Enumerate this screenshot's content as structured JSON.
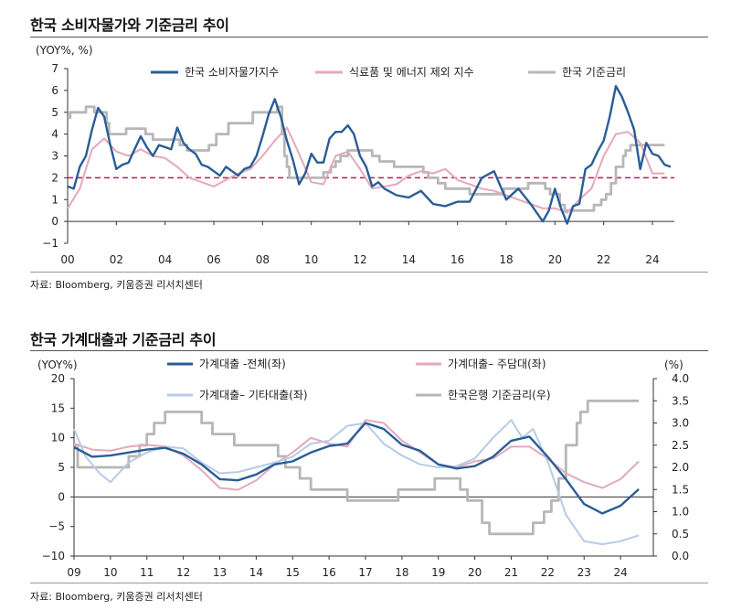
{
  "charts": [
    {
      "title": "한국 소비자물가와 기준금리 추이",
      "source": "자료: Bloomberg, 키움증권 리서치센터",
      "y_unit": "(YOY%, %)",
      "chart_data": {
        "type": "line",
        "xlabel": "",
        "ylabel": "(YOY%, %)",
        "x_tick_labels": [
          "00",
          "02",
          "04",
          "06",
          "08",
          "10",
          "12",
          "14",
          "16",
          "18",
          "20",
          "22",
          "24"
        ],
        "x_range": [
          2000,
          2024.9
        ],
        "y_ticks": [
          "−1",
          "0",
          "1",
          "2",
          "3",
          "4",
          "5",
          "6",
          "7"
        ],
        "ylim": [
          -1,
          7
        ],
        "grid": false,
        "legend_position": "top",
        "reference_line": {
          "value": 2,
          "style": "dashed",
          "color": "#c0185a"
        },
        "series": [
          {
            "name": "한국 소비자물가지수",
            "color": "#2a5d97",
            "width": 2.4,
            "x": [
              2000,
              2000.25,
              2000.5,
              2000.75,
              2001,
              2001.25,
              2001.5,
              2001.75,
              2002,
              2002.25,
              2002.5,
              2002.75,
              2003,
              2003.25,
              2003.5,
              2003.75,
              2004,
              2004.25,
              2004.5,
              2004.75,
              2005,
              2005.25,
              2005.5,
              2005.75,
              2006,
              2006.25,
              2006.5,
              2006.75,
              2007,
              2007.25,
              2007.5,
              2007.75,
              2008,
              2008.25,
              2008.5,
              2008.75,
              2009,
              2009.25,
              2009.5,
              2009.75,
              2010,
              2010.25,
              2010.5,
              2010.75,
              2011,
              2011.25,
              2011.5,
              2011.75,
              2012,
              2012.25,
              2012.5,
              2012.75,
              2013,
              2013.5,
              2014,
              2014.5,
              2015,
              2015.5,
              2016,
              2016.5,
              2017,
              2017.5,
              2018,
              2018.5,
              2019,
              2019.5,
              2019.75,
              2020,
              2020.25,
              2020.5,
              2020.75,
              2021,
              2021.25,
              2021.5,
              2021.75,
              2022,
              2022.25,
              2022.5,
              2022.75,
              2023,
              2023.25,
              2023.5,
              2023.75,
              2024,
              2024.25,
              2024.5,
              2024.75
            ],
            "y": [
              1.6,
              1.5,
              2.5,
              3.0,
              4.2,
              5.2,
              4.8,
              3.5,
              2.4,
              2.6,
              2.7,
              3.3,
              3.9,
              3.4,
              3.0,
              3.5,
              3.4,
              3.3,
              4.3,
              3.6,
              3.3,
              3.1,
              2.6,
              2.5,
              2.3,
              2.1,
              2.5,
              2.3,
              2.1,
              2.4,
              2.5,
              3.0,
              3.9,
              4.9,
              5.6,
              4.8,
              3.7,
              2.8,
              1.7,
              2.2,
              3.1,
              2.7,
              2.7,
              3.8,
              4.1,
              4.1,
              4.4,
              4.0,
              3.0,
              2.5,
              1.6,
              1.8,
              1.5,
              1.2,
              1.1,
              1.4,
              0.8,
              0.7,
              0.9,
              0.9,
              2.0,
              2.3,
              1.0,
              1.5,
              0.8,
              0.0,
              0.5,
              1.5,
              0.6,
              -0.1,
              0.7,
              0.8,
              2.4,
              2.6,
              3.2,
              3.7,
              4.8,
              6.2,
              5.7,
              5.0,
              4.2,
              2.4,
              3.6,
              3.1,
              3.0,
              2.6,
              2.5
            ]
          },
          {
            "name": "식료품 및 에너지 제외 지수",
            "color": "#e3a9bb",
            "width": 2.0,
            "x": [
              2000,
              2000.5,
              2001,
              2001.5,
              2002,
              2002.5,
              2003,
              2003.5,
              2004,
              2004.5,
              2005,
              2005.5,
              2006,
              2006.5,
              2007,
              2007.5,
              2008,
              2008.5,
              2009,
              2009.5,
              2010,
              2010.5,
              2011,
              2011.5,
              2012,
              2012.5,
              2013,
              2013.5,
              2014,
              2014.5,
              2015,
              2015.5,
              2016,
              2016.5,
              2017,
              2017.5,
              2018,
              2018.5,
              2019,
              2019.5,
              2020,
              2020.5,
              2021,
              2021.5,
              2022,
              2022.5,
              2023,
              2023.5,
              2024,
              2024.5
            ],
            "y": [
              0.6,
              1.5,
              3.3,
              3.8,
              3.2,
              3.0,
              3.3,
              3.0,
              2.9,
              2.5,
              2.0,
              1.8,
              1.6,
              1.9,
              2.2,
              2.4,
              3.0,
              3.7,
              4.3,
              3.1,
              1.8,
              1.7,
              3.0,
              3.2,
              2.4,
              1.5,
              1.6,
              1.7,
              2.1,
              2.3,
              2.2,
              2.4,
              1.9,
              1.7,
              1.5,
              1.4,
              1.2,
              1.0,
              0.8,
              0.6,
              0.6,
              0.4,
              1.0,
              1.5,
              3.0,
              4.0,
              4.1,
              3.6,
              2.2,
              2.2
            ]
          },
          {
            "name": "한국 기준금리",
            "color": "#b7b7b7",
            "width": 2.8,
            "x": [
              2000,
              2000.1,
              2000.1,
              2000.75,
              2000.75,
              2001.1,
              2001.1,
              2001.6,
              2001.6,
              2001.7,
              2001.7,
              2002.4,
              2002.4,
              2003.2,
              2003.2,
              2003.5,
              2003.5,
              2004.6,
              2004.6,
              2004.9,
              2004.9,
              2005.8,
              2005.8,
              2006.1,
              2006.1,
              2006.6,
              2006.6,
              2007.6,
              2007.6,
              2008.6,
              2008.6,
              2008.8,
              2008.8,
              2008.9,
              2008.9,
              2009.0,
              2009.0,
              2009.1,
              2009.1,
              2010.5,
              2010.5,
              2010.8,
              2010.8,
              2011.0,
              2011.0,
              2011.2,
              2011.2,
              2011.5,
              2011.5,
              2012.5,
              2012.5,
              2012.8,
              2012.8,
              2013.4,
              2013.4,
              2014.6,
              2014.6,
              2014.8,
              2014.8,
              2015.2,
              2015.2,
              2015.5,
              2015.5,
              2016.5,
              2016.5,
              2017.9,
              2017.9,
              2018.9,
              2018.9,
              2019.6,
              2019.6,
              2019.8,
              2019.8,
              2020.2,
              2020.2,
              2020.4,
              2020.4,
              2021.6,
              2021.6,
              2021.9,
              2021.9,
              2022.1,
              2022.1,
              2022.3,
              2022.3,
              2022.5,
              2022.5,
              2022.8,
              2022.8,
              2022.9,
              2022.9,
              2023.1,
              2023.1,
              2024.5
            ],
            "y": [
              4.75,
              4.75,
              5.0,
              5.0,
              5.25,
              5.25,
              5.0,
              5.0,
              4.5,
              4.5,
              4.0,
              4.0,
              4.25,
              4.25,
              4.0,
              4.0,
              3.75,
              3.75,
              3.5,
              3.5,
              3.25,
              3.25,
              3.5,
              3.5,
              4.0,
              4.0,
              4.5,
              4.5,
              5.0,
              5.0,
              5.25,
              5.25,
              4.0,
              4.0,
              3.0,
              3.0,
              2.5,
              2.5,
              2.0,
              2.0,
              2.25,
              2.25,
              2.5,
              2.5,
              2.75,
              2.75,
              3.0,
              3.0,
              3.25,
              3.25,
              3.0,
              3.0,
              2.75,
              2.75,
              2.5,
              2.5,
              2.25,
              2.25,
              2.0,
              2.0,
              1.75,
              1.75,
              1.5,
              1.5,
              1.25,
              1.25,
              1.5,
              1.5,
              1.75,
              1.75,
              1.5,
              1.5,
              1.25,
              1.25,
              0.75,
              0.75,
              0.5,
              0.5,
              0.75,
              0.75,
              1.0,
              1.0,
              1.25,
              1.25,
              1.75,
              1.75,
              2.5,
              2.5,
              3.0,
              3.0,
              3.25,
              3.25,
              3.5,
              3.5
            ]
          }
        ]
      }
    },
    {
      "title": "한국 가계대출과 기준금리 추이",
      "source": "자료: Bloomberg, 키움증권 리서치센터",
      "y_unit_left": "(YOY%)",
      "y_unit_right": "(%)",
      "chart_data": {
        "type": "line",
        "xlabel": "",
        "ylabel": "(YOY%)",
        "ylabel_right": "(%)",
        "x_tick_labels": [
          "09",
          "10",
          "11",
          "12",
          "13",
          "14",
          "15",
          "16",
          "17",
          "18",
          "19",
          "20",
          "21",
          "22",
          "23",
          "24"
        ],
        "x_range": [
          2009,
          2024.9
        ],
        "y_ticks": [
          "−10",
          "−5",
          "0",
          "5",
          "10",
          "15",
          "20"
        ],
        "ylim": [
          -10,
          20
        ],
        "y_ticks_right": [
          "0.0",
          "0.5",
          "1.0",
          "1.5",
          "2.0",
          "2.5",
          "3.0",
          "3.5",
          "4.0"
        ],
        "ylim_right": [
          0,
          4
        ],
        "grid": false,
        "legend_position": "top",
        "series": [
          {
            "name": "가계대출 -전체(좌)",
            "axis": "left",
            "color": "#2a5d97",
            "width": 2.4,
            "x": [
              2009,
              2009.5,
              2010,
              2010.5,
              2011,
              2011.5,
              2012,
              2012.5,
              2013,
              2013.5,
              2014,
              2014.5,
              2015,
              2015.5,
              2016,
              2016.5,
              2017,
              2017.5,
              2018,
              2018.5,
              2019,
              2019.5,
              2020,
              2020.5,
              2021,
              2021.5,
              2022,
              2022.5,
              2023,
              2023.5,
              2024,
              2024.5
            ],
            "y": [
              8.4,
              6.8,
              7.0,
              7.5,
              8.0,
              8.3,
              7.3,
              5.5,
              3.0,
              2.8,
              3.8,
              5.5,
              6.0,
              7.5,
              8.6,
              9.0,
              12.5,
              11.5,
              8.8,
              7.8,
              5.5,
              4.8,
              5.2,
              6.8,
              9.5,
              10.2,
              6.8,
              3.0,
              -1.2,
              -2.8,
              -1.5,
              1.3
            ]
          },
          {
            "name": "가계대출– 주담대(좌)",
            "axis": "left",
            "color": "#e3a9bb",
            "width": 2.0,
            "x": [
              2009,
              2009.5,
              2010,
              2010.5,
              2011,
              2011.5,
              2012,
              2012.5,
              2013,
              2013.5,
              2014,
              2014.5,
              2015,
              2015.5,
              2016,
              2016.5,
              2017,
              2017.5,
              2018,
              2018.5,
              2019,
              2019.5,
              2020,
              2020.5,
              2021,
              2021.5,
              2022,
              2022.5,
              2023,
              2023.5,
              2024,
              2024.5
            ],
            "y": [
              9.0,
              8.0,
              7.8,
              8.5,
              8.8,
              8.5,
              7.0,
              4.5,
              1.5,
              1.2,
              2.8,
              5.5,
              7.5,
              10.0,
              9.0,
              8.5,
              13.0,
              12.5,
              9.5,
              7.5,
              5.5,
              5.0,
              6.0,
              6.5,
              8.5,
              8.5,
              6.5,
              4.0,
              2.5,
              1.5,
              3.0,
              6.0
            ]
          },
          {
            "name": "가계대출– 기타대출(좌)",
            "axis": "left",
            "color": "#b6cbe6",
            "width": 2.0,
            "x": [
              2009,
              2009.3,
              2009.7,
              2010,
              2010.5,
              2011,
              2011.5,
              2012,
              2012.5,
              2013,
              2013.5,
              2014,
              2014.5,
              2015,
              2015.5,
              2016,
              2016.5,
              2017,
              2017.5,
              2018,
              2018.5,
              2019,
              2019.5,
              2020,
              2020.5,
              2021,
              2021.3,
              2021.6,
              2022,
              2022.5,
              2023,
              2023.5,
              2024,
              2024.5
            ],
            "y": [
              11.5,
              7.0,
              4.0,
              2.5,
              5.8,
              7.5,
              8.5,
              8.2,
              5.8,
              4.0,
              4.2,
              5.0,
              5.8,
              6.8,
              9.0,
              9.5,
              12.0,
              12.5,
              9.0,
              7.0,
              5.5,
              5.0,
              5.2,
              6.5,
              10.0,
              13.0,
              10.0,
              11.5,
              6.0,
              -3.0,
              -7.5,
              -8.0,
              -7.5,
              -6.5
            ]
          },
          {
            "name": "한국은행 기준금리(우)",
            "axis": "right",
            "color": "#b7b7b7",
            "width": 2.8,
            "x": [
              2009,
              2009.1,
              2009.1,
              2010.5,
              2010.5,
              2010.8,
              2010.8,
              2011.0,
              2011.0,
              2011.2,
              2011.2,
              2011.5,
              2011.5,
              2012.5,
              2012.5,
              2012.8,
              2012.8,
              2013.4,
              2013.4,
              2014.6,
              2014.6,
              2014.8,
              2014.8,
              2015.2,
              2015.2,
              2015.5,
              2015.5,
              2016.5,
              2016.5,
              2017.9,
              2017.9,
              2018.9,
              2018.9,
              2019.6,
              2019.6,
              2019.8,
              2019.8,
              2020.2,
              2020.2,
              2020.4,
              2020.4,
              2021.6,
              2021.6,
              2021.9,
              2021.9,
              2022.1,
              2022.1,
              2022.3,
              2022.3,
              2022.5,
              2022.5,
              2022.8,
              2022.8,
              2022.9,
              2022.9,
              2023.1,
              2023.1,
              2024.5
            ],
            "y": [
              2.5,
              2.5,
              2.0,
              2.0,
              2.25,
              2.25,
              2.5,
              2.5,
              2.75,
              2.75,
              3.0,
              3.0,
              3.25,
              3.25,
              3.0,
              3.0,
              2.75,
              2.75,
              2.5,
              2.5,
              2.25,
              2.25,
              2.0,
              2.0,
              1.75,
              1.75,
              1.5,
              1.5,
              1.25,
              1.25,
              1.5,
              1.5,
              1.75,
              1.75,
              1.5,
              1.5,
              1.25,
              1.25,
              0.75,
              0.75,
              0.5,
              0.5,
              0.75,
              0.75,
              1.0,
              1.0,
              1.25,
              1.25,
              1.75,
              1.75,
              2.5,
              2.5,
              3.0,
              3.0,
              3.25,
              3.25,
              3.5,
              3.5
            ]
          }
        ]
      }
    }
  ]
}
